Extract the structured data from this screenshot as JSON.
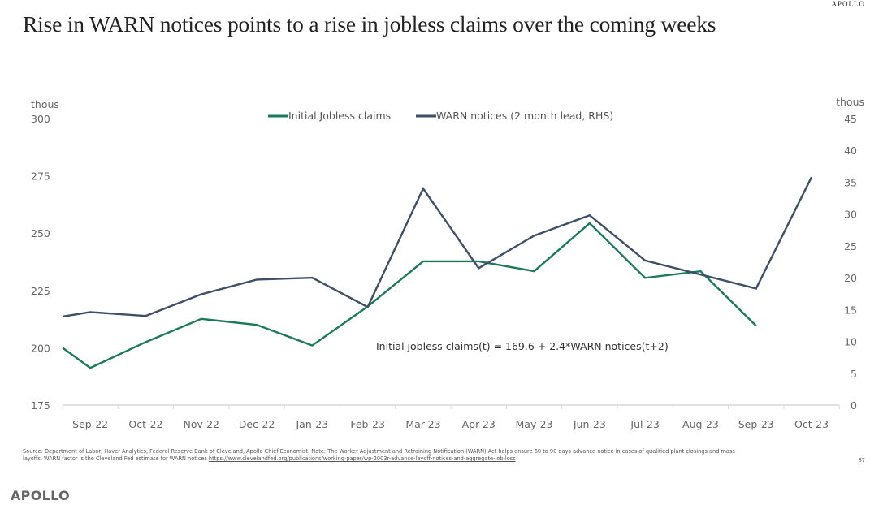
{
  "header": {
    "brand": "APOLLO",
    "title": "Rise in WARN notices points to a rise in jobless claims over the coming weeks"
  },
  "chart_data": {
    "type": "line",
    "title": "Rise in WARN notices points to a rise in jobless claims over the coming weeks",
    "categories": [
      "Sep-22",
      "Oct-22",
      "Nov-22",
      "Dec-22",
      "Jan-23",
      "Feb-23",
      "Mar-23",
      "Apr-23",
      "May-23",
      "Jun-23",
      "Jul-23",
      "Aug-23",
      "Sep-23",
      "Oct-23"
    ],
    "left_axis": {
      "label": "thous",
      "ylim": [
        175,
        300
      ],
      "ticks": [
        "175",
        "200",
        "225",
        "250",
        "275",
        "300"
      ]
    },
    "right_axis": {
      "label": "thous",
      "ylim": [
        0,
        45
      ],
      "ticks": [
        "0",
        "5",
        "10",
        "15",
        "20",
        "25",
        "30",
        "35",
        "40",
        "45"
      ]
    },
    "series": [
      {
        "name": "Initial Jobless claims",
        "axis": "left",
        "color": "#1a7a5a",
        "x": [
          -0.5,
          0,
          1,
          2,
          3,
          4,
          5,
          6,
          7,
          8,
          9,
          10,
          11,
          12
        ],
        "values": [
          200,
          191.2,
          202.5,
          212.6,
          210,
          201,
          218,
          237.7,
          237.7,
          233.4,
          254.3,
          230.5,
          233.4,
          209.6
        ]
      },
      {
        "name": "WARN notices (2 month lead, RHS)",
        "axis": "right",
        "color": "#3d5068",
        "x": [
          -0.5,
          0,
          1,
          2,
          3,
          4,
          5,
          6,
          7,
          8,
          9,
          10,
          11,
          12,
          13
        ],
        "values": [
          13.9,
          14.6,
          14.0,
          17.4,
          19.7,
          20.0,
          15.4,
          34.0,
          21.5,
          26.6,
          29.8,
          22.7,
          20.5,
          18.3,
          35.8
        ]
      }
    ],
    "legend_position": "top-center",
    "annotation": "Initial jobless claims(t) = 169.6 + 2.4*WARN notices(t+2)",
    "grid": false
  },
  "footer": {
    "source_line1": "Source: Department of Labor, Haver Analytics, Federal Reserve Bank of Cleveland, Apollo Chief Economist. Note: The Worker Adjustment and Retraining Notification (WARN) Act helps ensure 60 to 90 days advance notice in cases of qualified plant closings and mass",
    "source_line2": "layoffs. WARN factor is the Cleveland Fed estimate for WARN notices",
    "source_link": "https://www.clevelandfed.org/publications/working-paper/wp-2003r-advance-layoff-notices-and-aggregate-job-loss",
    "page_number": "87",
    "brand": "APOLLO"
  }
}
